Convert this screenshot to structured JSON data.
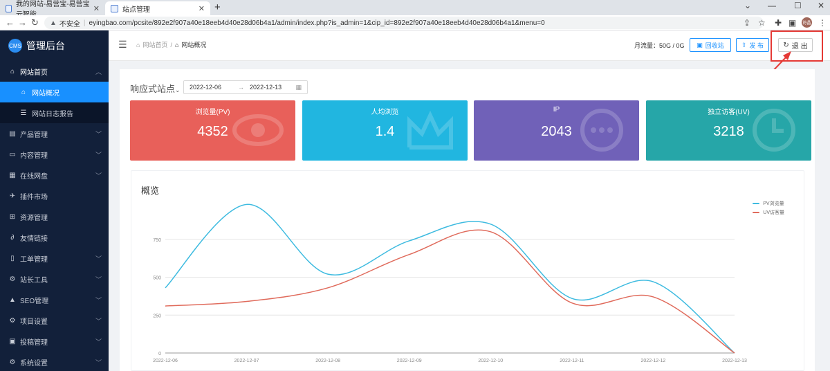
{
  "browser": {
    "tabs": [
      {
        "title": "我的网站-易营宝-易营宝云智能..."
      },
      {
        "title": "站点管理"
      }
    ],
    "new_tab": "+",
    "security": "不安全",
    "url": "eyingbao.com/pcsite/892e2f907a40e18eeb4d40e28d06b4a1/admin/index.php?is_admin=1&cip_id=892e2f907a40e18eeb4d40e28d06b4a1&menu=0",
    "avatar_text": "符晶"
  },
  "sidebar": {
    "brand_logo": "CMS",
    "brand_title": "管理后台",
    "items": [
      {
        "label": "网站首页",
        "icon": "home-icon",
        "open": true,
        "children": [
          {
            "label": "网站概况",
            "icon": "home-icon",
            "active": true
          },
          {
            "label": "网站日志报告",
            "icon": "list-icon",
            "active": false
          }
        ]
      },
      {
        "label": "产品管理",
        "icon": "product-icon"
      },
      {
        "label": "内容管理",
        "icon": "content-icon"
      },
      {
        "label": "在线网盘",
        "icon": "disk-icon"
      },
      {
        "label": "插件市场",
        "icon": "pin-icon"
      },
      {
        "label": "资源管理",
        "icon": "grid-icon"
      },
      {
        "label": "友情链接",
        "icon": "link-icon"
      },
      {
        "label": "工单管理",
        "icon": "ticket-icon"
      },
      {
        "label": "站长工具",
        "icon": "tools-icon"
      },
      {
        "label": "SEO管理",
        "icon": "warning-icon"
      },
      {
        "label": "项目设置",
        "icon": "settings-icon"
      },
      {
        "label": "投稿管理",
        "icon": "inbox-icon"
      },
      {
        "label": "系统设置",
        "icon": "gear-icon"
      }
    ]
  },
  "header": {
    "breadcrumb_home": "网站首页",
    "breadcrumb_sep": "/",
    "breadcrumb_current": "网站概况",
    "traffic_label": "月流量：50G / 0G",
    "recycle_label": "回收站",
    "publish_label": "发 布",
    "logout_label": "退 出"
  },
  "filter": {
    "site_label": "响应式站点",
    "date_start": "2022-12-06",
    "date_end": "2022-12-13"
  },
  "cards": [
    {
      "label": "浏览量(PV)",
      "value": "4352",
      "color": "#e8605a",
      "icon": "eye-icon"
    },
    {
      "label": "人均浏览",
      "value": "1.4",
      "color": "#21b6e0",
      "icon": "crown-icon"
    },
    {
      "label": "IP",
      "value": "2043",
      "color": "#7061b8",
      "icon": "chat-icon"
    },
    {
      "label": "独立访客(UV)",
      "value": "3218",
      "color": "#26a6a8",
      "icon": "clock-icon"
    }
  ],
  "chart_data": {
    "type": "line",
    "title": "概览",
    "categories": [
      "2022-12-06",
      "2022-12-07",
      "2022-12-08",
      "2022-12-09",
      "2022-12-10",
      "2022-12-11",
      "2022-12-12",
      "2022-12-13"
    ],
    "yticks": [
      0,
      250,
      500,
      750
    ],
    "ylim": [
      0,
      1000
    ],
    "series": [
      {
        "name": "PV浏览量",
        "color": "#3ebbe0",
        "values": [
          430,
          980,
          520,
          740,
          850,
          360,
          470,
          0
        ]
      },
      {
        "name": "UV访客量",
        "color": "#e06b5c",
        "values": [
          310,
          340,
          430,
          650,
          800,
          330,
          370,
          0
        ]
      }
    ],
    "legend_position": "top-right",
    "grid": true
  }
}
